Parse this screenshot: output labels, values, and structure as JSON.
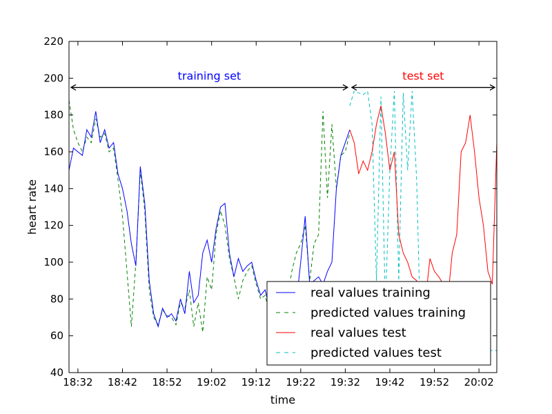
{
  "chart_data": {
    "type": "line",
    "xlabel": "time",
    "ylabel": "heart rate",
    "xlim": [
      "18:30",
      "20:06"
    ],
    "ylim": [
      40,
      220
    ],
    "y_ticks": [
      40,
      60,
      80,
      100,
      120,
      140,
      160,
      180,
      200,
      220
    ],
    "x_ticks": [
      "18:32",
      "18:42",
      "18:52",
      "19:02",
      "19:12",
      "19:22",
      "19:32",
      "19:42",
      "19:52",
      "20:02"
    ],
    "grid": false,
    "legend_position": "lower-right",
    "colors": {
      "real_training": "#0000ff",
      "predicted_training": "#008000",
      "real_test": "#ff0000",
      "predicted_test": "#00bfbf"
    },
    "annotations": [
      {
        "text": "training set",
        "x_from": "18:30",
        "x_to": "19:33",
        "y": 195,
        "color": "#0000ff"
      },
      {
        "text": "test set",
        "x_from": "19:33",
        "x_to": "20:06",
        "y": 195,
        "color": "#ff0000"
      }
    ],
    "series": [
      {
        "name": "real values training",
        "style": "solid",
        "x": [
          "18:30",
          "18:31",
          "18:32",
          "18:33",
          "18:34",
          "18:35",
          "18:36",
          "18:37",
          "18:38",
          "18:39",
          "18:40",
          "18:41",
          "18:42",
          "18:43",
          "18:44",
          "18:45",
          "18:46",
          "18:47",
          "18:48",
          "18:49",
          "18:50",
          "18:51",
          "18:52",
          "18:53",
          "18:54",
          "18:55",
          "18:56",
          "18:57",
          "18:58",
          "18:59",
          "19:00",
          "19:01",
          "19:02",
          "19:03",
          "19:04",
          "19:05",
          "19:06",
          "19:07",
          "19:08",
          "19:09",
          "19:10",
          "19:11",
          "19:12",
          "19:13",
          "19:14",
          "19:15",
          "19:16",
          "19:17",
          "19:18",
          "19:19",
          "19:20",
          "19:21",
          "19:22",
          "19:23",
          "19:24",
          "19:25",
          "19:26",
          "19:27",
          "19:28",
          "19:29",
          "19:30",
          "19:31",
          "19:32",
          "19:33"
        ],
        "y": [
          150,
          162,
          160,
          158,
          172,
          168,
          182,
          165,
          172,
          162,
          165,
          148,
          140,
          128,
          110,
          98,
          152,
          132,
          90,
          72,
          65,
          75,
          70,
          72,
          68,
          80,
          72,
          95,
          78,
          82,
          105,
          112,
          100,
          118,
          130,
          132,
          105,
          92,
          102,
          95,
          98,
          100,
          90,
          82,
          85,
          75,
          70,
          72,
          70,
          82,
          75,
          78,
          100,
          125,
          88,
          90,
          92,
          88,
          95,
          100,
          140,
          158,
          165,
          172
        ]
      },
      {
        "name": "predicted values training",
        "style": "dashed",
        "x": [
          "18:30",
          "18:31",
          "18:32",
          "18:33",
          "18:34",
          "18:35",
          "18:36",
          "18:37",
          "18:38",
          "18:39",
          "18:40",
          "18:41",
          "18:42",
          "18:43",
          "18:44",
          "18:45",
          "18:46",
          "18:47",
          "18:48",
          "18:49",
          "18:50",
          "18:51",
          "18:52",
          "18:53",
          "18:54",
          "18:55",
          "18:56",
          "18:57",
          "18:58",
          "18:59",
          "19:00",
          "19:01",
          "19:02",
          "19:03",
          "19:04",
          "19:05",
          "19:06",
          "19:07",
          "19:08",
          "19:09",
          "19:10",
          "19:11",
          "19:12",
          "19:13",
          "19:14",
          "19:15",
          "19:16",
          "19:17",
          "19:18",
          "19:19",
          "19:20",
          "19:21",
          "19:22",
          "19:23",
          "19:24",
          "19:25",
          "19:26",
          "19:27",
          "19:28",
          "19:29",
          "19:30",
          "19:31",
          "19:32",
          "19:33"
        ],
        "y": [
          188,
          172,
          165,
          160,
          168,
          165,
          178,
          168,
          170,
          160,
          162,
          145,
          125,
          95,
          65,
          100,
          150,
          128,
          85,
          70,
          66,
          74,
          71,
          70,
          66,
          78,
          75,
          85,
          65,
          78,
          62,
          92,
          85,
          115,
          128,
          120,
          102,
          92,
          80,
          90,
          95,
          98,
          88,
          80,
          82,
          72,
          70,
          70,
          72,
          80,
          95,
          105,
          110,
          120,
          90,
          110,
          115,
          182,
          135,
          175,
          140,
          158,
          160,
          170
        ]
      },
      {
        "name": "real values test",
        "style": "solid",
        "x": [
          "19:33",
          "19:34",
          "19:35",
          "19:36",
          "19:37",
          "19:38",
          "19:39",
          "19:40",
          "19:41",
          "19:42",
          "19:43",
          "19:44",
          "19:45",
          "19:46",
          "19:47",
          "19:48",
          "19:49",
          "19:50",
          "19:51",
          "19:52",
          "19:53",
          "19:54",
          "19:55",
          "19:56",
          "19:57",
          "19:58",
          "19:59",
          "20:00",
          "20:01",
          "20:02",
          "20:03",
          "20:04",
          "20:05",
          "20:06"
        ],
        "y": [
          172,
          165,
          148,
          155,
          150,
          160,
          175,
          185,
          170,
          150,
          160,
          115,
          105,
          100,
          92,
          90,
          85,
          80,
          102,
          95,
          92,
          88,
          80,
          105,
          115,
          160,
          165,
          180,
          160,
          135,
          120,
          95,
          88,
          165
        ]
      },
      {
        "name": "predicted values test",
        "style": "dashed",
        "x": [
          "19:33",
          "19:34",
          "19:35",
          "19:36",
          "19:37",
          "19:38",
          "19:39",
          "19:40",
          "19:41",
          "19:42",
          "19:43",
          "19:44",
          "19:45",
          "19:46",
          "19:47",
          "19:48",
          "19:49",
          "19:50",
          "19:51",
          "19:52",
          "19:53",
          "19:54",
          "19:55",
          "19:56",
          "19:57",
          "19:58",
          "19:59",
          "20:00",
          "20:01",
          "20:02",
          "20:03",
          "20:04",
          "20:05",
          "20:06"
        ],
        "y": [
          185,
          193,
          192,
          191,
          193,
          175,
          90,
          190,
          75,
          150,
          193,
          90,
          192,
          150,
          193,
          145,
          52,
          52,
          52,
          52,
          52,
          52,
          52,
          52,
          52,
          52,
          52,
          52,
          52,
          52,
          52,
          52,
          52,
          52
        ]
      }
    ]
  }
}
